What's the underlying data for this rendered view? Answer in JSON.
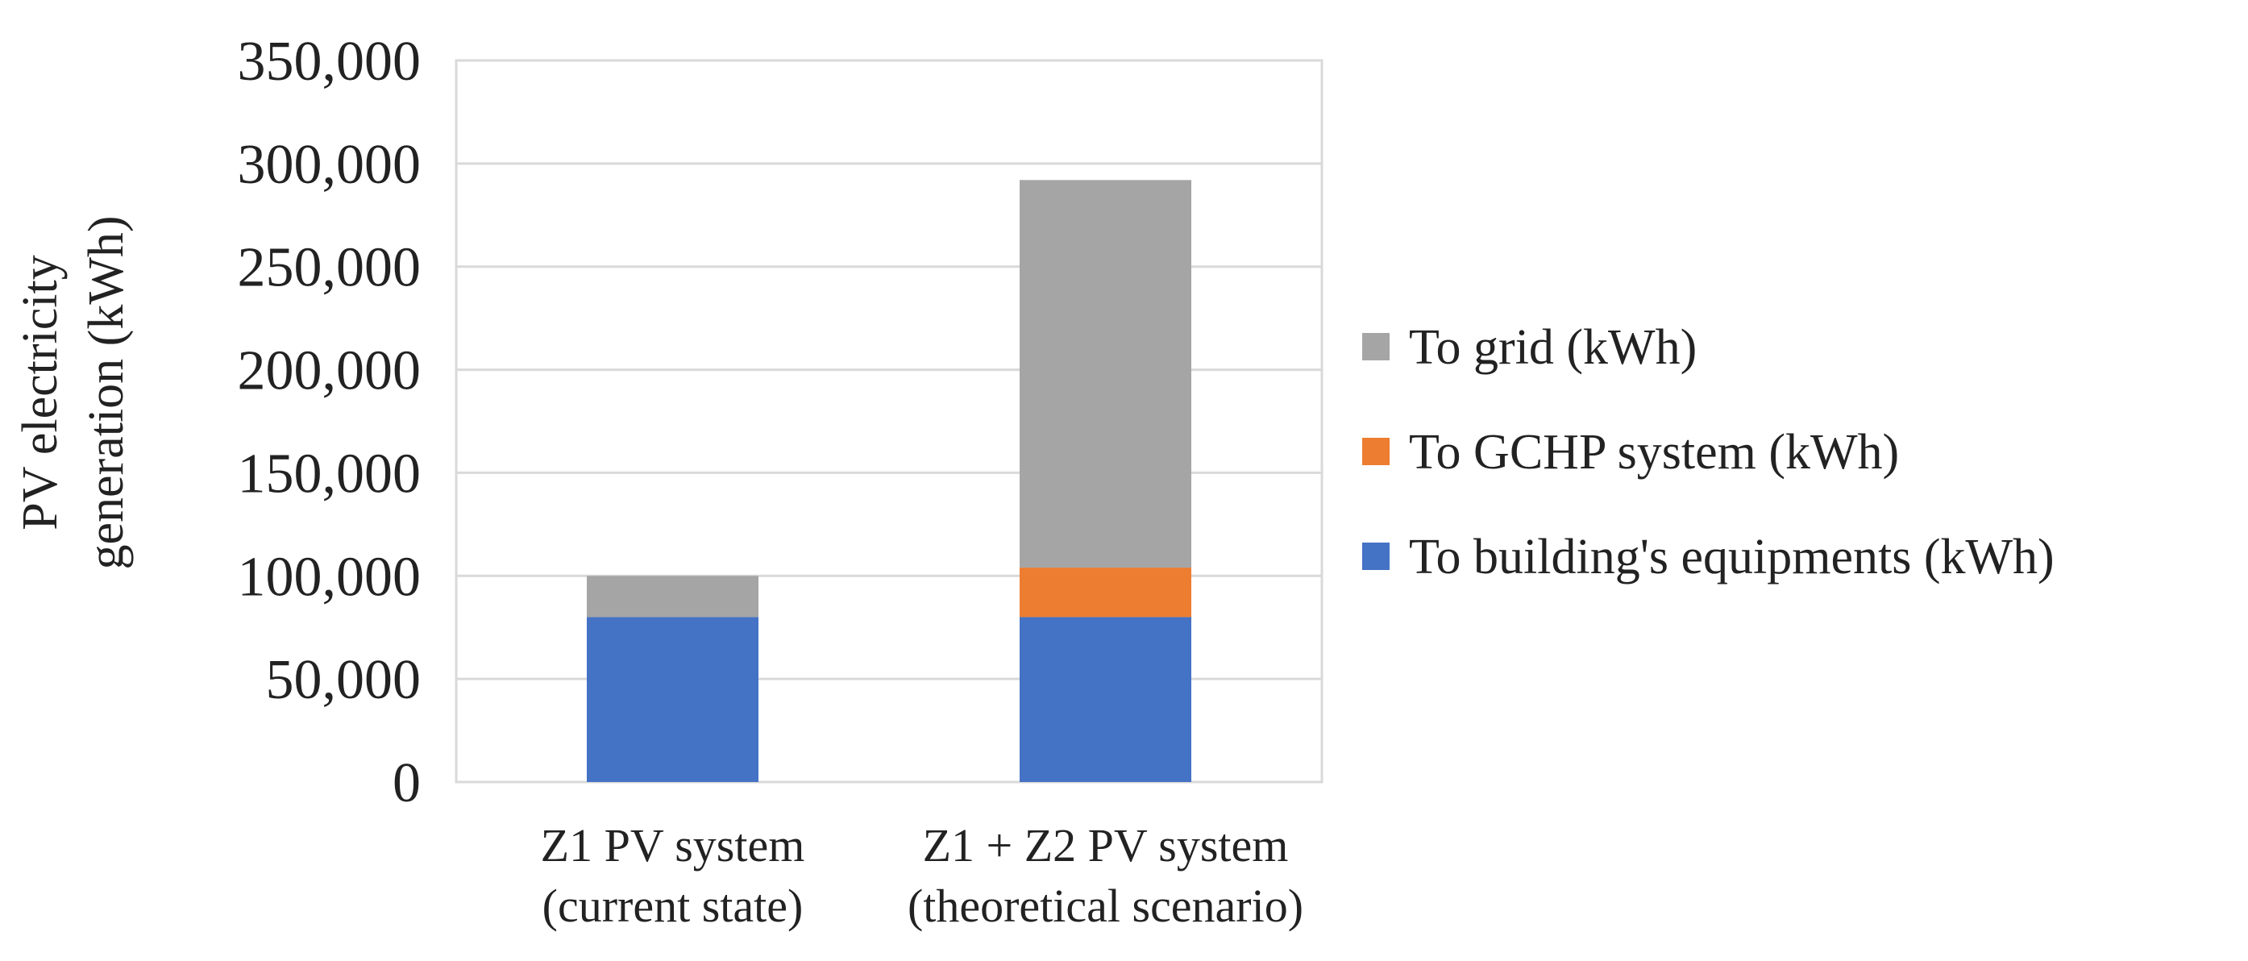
{
  "chart_data": {
    "type": "bar",
    "stacked": true,
    "title": "",
    "xlabel": "",
    "ylabel_lines": [
      "PV electricity",
      "generation (kWh)"
    ],
    "ylim": [
      0,
      350000
    ],
    "yticks": [
      0,
      50000,
      100000,
      150000,
      200000,
      250000,
      300000,
      350000
    ],
    "ytick_labels": [
      "0",
      "50,000",
      "100,000",
      "150,000",
      "200,000",
      "250,000",
      "300,000",
      "350,000"
    ],
    "grid": true,
    "legend_position": "right",
    "categories": [
      {
        "line1": "Z1 PV system",
        "line2": "(current state)"
      },
      {
        "line1": "Z1 + Z2 PV system",
        "line2": "(theoretical scenario)"
      }
    ],
    "series": [
      {
        "name": "To building's equipments (kWh)",
        "color": "#4472C4",
        "values": [
          80000,
          80000
        ]
      },
      {
        "name": "To GCHP system (kWh)",
        "color": "#ED7D31",
        "values": [
          0,
          24000
        ]
      },
      {
        "name": "To grid (kWh)",
        "color": "#A5A5A5",
        "values": [
          20000,
          188000
        ]
      }
    ],
    "legend_order": [
      2,
      1,
      0
    ]
  }
}
